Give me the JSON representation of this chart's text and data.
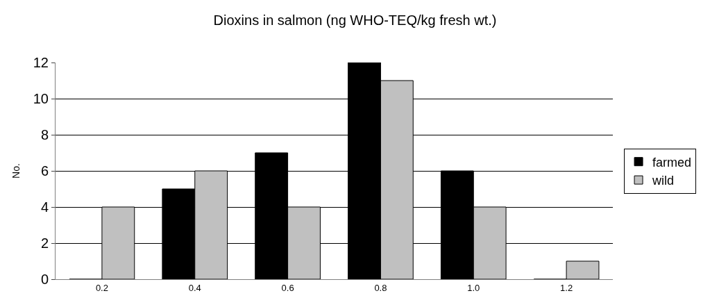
{
  "chart_data": {
    "type": "bar",
    "title": "Dioxins in salmon (ng WHO-TEQ/kg fresh wt.)",
    "ylabel": "No.",
    "categories": [
      "0.2",
      "0.4",
      "0.6",
      "0.8",
      "1.0",
      "1.2"
    ],
    "series": [
      {
        "name": "farmed",
        "color": "#000000",
        "values": [
          0,
          5,
          7,
          12,
          6,
          0
        ]
      },
      {
        "name": "wild",
        "color": "#c0c0c0",
        "values": [
          4,
          6,
          4,
          11,
          4,
          1
        ]
      }
    ],
    "ylim": [
      0,
      12
    ],
    "yticks": [
      0,
      2,
      4,
      6,
      8,
      10,
      12
    ],
    "grid": "y",
    "legend": "right"
  }
}
